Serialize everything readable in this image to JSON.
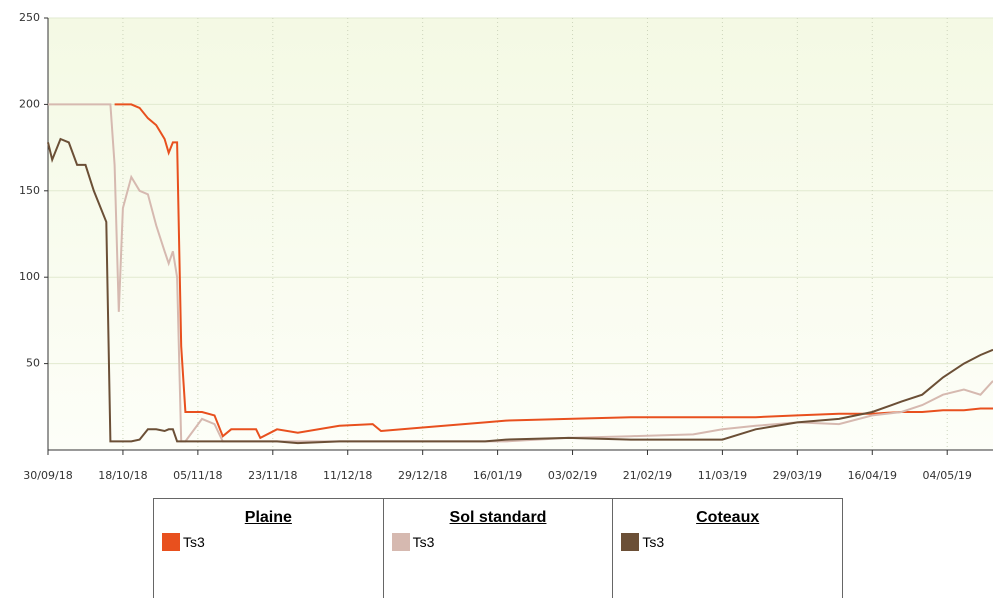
{
  "chart_data": {
    "type": "line",
    "x": [
      "30/09/18",
      "01/10/18",
      "03/10/18",
      "05/10/18",
      "07/10/18",
      "09/10/18",
      "11/10/18",
      "14/10/18",
      "15/10/18",
      "16/10/18",
      "17/10/18",
      "18/10/18",
      "20/10/18",
      "22/10/18",
      "24/10/18",
      "26/10/18",
      "28/10/18",
      "29/10/18",
      "30/10/18",
      "31/10/18",
      "01/11/18",
      "02/11/18",
      "06/11/18",
      "09/11/18",
      "11/11/18",
      "13/11/18",
      "19/11/18",
      "20/11/18",
      "24/11/18",
      "29/11/18",
      "09/12/18",
      "17/12/18",
      "19/12/18",
      "29/12/18",
      "13/01/19",
      "18/01/19",
      "02/02/19",
      "17/02/19",
      "04/03/19",
      "11/03/19",
      "19/03/19",
      "29/03/19",
      "08/04/19",
      "16/04/19",
      "23/04/19",
      "28/04/19",
      "03/05/19",
      "08/05/19",
      "12/05/19",
      "15/05/19"
    ],
    "series": [
      {
        "group": "Plaine",
        "name": "Ts3",
        "color": "#e8501e",
        "values": [
          null,
          null,
          null,
          null,
          null,
          null,
          null,
          null,
          null,
          200,
          200,
          200,
          200,
          198,
          192,
          188,
          180,
          172,
          178,
          178,
          60,
          22,
          22,
          20,
          8,
          12,
          12,
          7,
          12,
          10,
          14,
          15,
          11,
          13,
          16,
          17,
          18,
          19,
          19,
          19,
          19,
          20,
          21,
          21,
          22,
          22,
          23,
          23,
          24,
          24
        ]
      },
      {
        "group": "Sol standard",
        "name": "Ts3",
        "color": "#d6b9b0",
        "values": [
          200,
          200,
          200,
          200,
          200,
          200,
          200,
          200,
          200,
          165,
          80,
          140,
          158,
          150,
          148,
          130,
          115,
          108,
          115,
          100,
          5,
          5,
          18,
          15,
          5,
          5,
          5,
          5,
          5,
          5,
          5,
          5,
          5,
          5,
          5,
          5,
          7,
          8,
          9,
          12,
          14,
          16,
          15,
          20,
          22,
          26,
          32,
          35,
          32,
          40
        ]
      },
      {
        "group": "Coteaux",
        "name": "Ts3",
        "color": "#6b4f36",
        "values": [
          178,
          168,
          180,
          178,
          165,
          165,
          150,
          132,
          5,
          5,
          5,
          5,
          5,
          6,
          12,
          12,
          11,
          12,
          12,
          5,
          5,
          5,
          5,
          5,
          5,
          5,
          5,
          5,
          5,
          4,
          5,
          5,
          5,
          5,
          5,
          6,
          7,
          6,
          6,
          6,
          12,
          16,
          18,
          22,
          28,
          32,
          42,
          50,
          55,
          58
        ]
      }
    ],
    "xlim": [
      "30/09/18",
      "15/05/19"
    ],
    "xticks": [
      "30/09/18",
      "18/10/18",
      "05/11/18",
      "23/11/18",
      "11/12/18",
      "29/12/18",
      "16/01/19",
      "03/02/19",
      "21/02/19",
      "11/03/19",
      "29/03/19",
      "16/04/19",
      "04/05/19"
    ],
    "ylim": [
      0,
      250
    ],
    "yticks": [
      50,
      100,
      150,
      200,
      250
    ],
    "grid": true
  }
}
